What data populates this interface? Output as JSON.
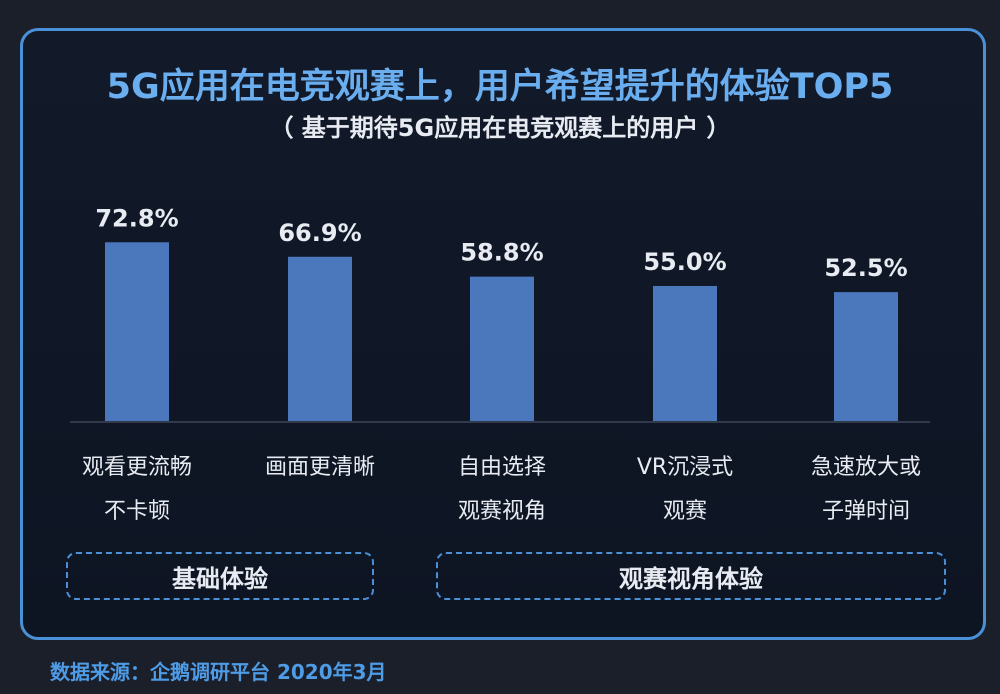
{
  "title": "5G应用在电竞观赛上，用户希望提升的体验TOP5",
  "subtitle": "（ 基于期待5G应用在电竞观赛上的用户 ）",
  "groups": {
    "basic": "基础体验",
    "viewing": "观赛视角体验"
  },
  "source": "数据来源：企鹅调研平台 2020年3月",
  "colors": {
    "bar": "#4b78bd",
    "title": "#6aaef0",
    "accent": "#4a90d6",
    "text": "#e8ecf2"
  },
  "chart_data": {
    "type": "bar",
    "title": "5G应用在电竞观赛上，用户希望提升的体验TOP5",
    "subtitle": "（ 基于期待5G应用在电竞观赛上的用户 ）",
    "categories": [
      [
        "观看更流畅",
        "不卡顿"
      ],
      [
        "画面更清晰"
      ],
      [
        "自由选择",
        "观赛视角"
      ],
      [
        "VR沉浸式",
        "观赛"
      ],
      [
        "急速放大或",
        "子弹时间"
      ]
    ],
    "values": [
      72.8,
      66.9,
      58.8,
      55.0,
      52.5
    ],
    "value_labels": [
      "72.8%",
      "66.9%",
      "58.8%",
      "55.0%",
      "52.5%"
    ],
    "ylim": [
      0,
      100
    ],
    "grid": false,
    "legend": "none"
  }
}
